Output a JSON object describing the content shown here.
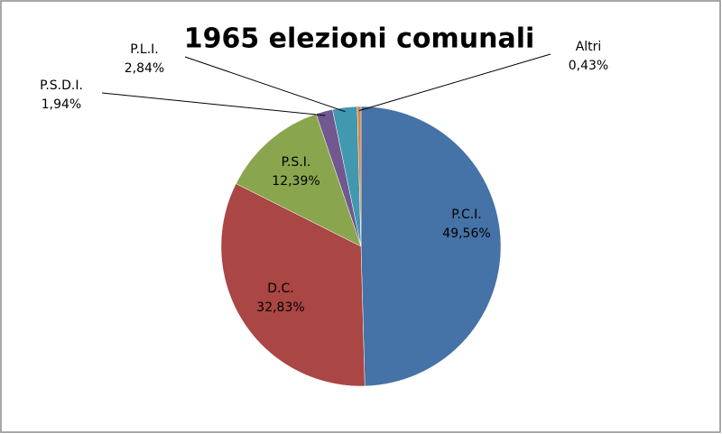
{
  "chart_data": {
    "type": "pie",
    "title": "1965 elezioni comunali",
    "categories": [
      "P.C.I.",
      "D.C.",
      "P.S.I.",
      "P.S.D.I.",
      "P.L.I.",
      "Altri"
    ],
    "values": [
      49.56,
      32.83,
      12.39,
      1.94,
      2.84,
      0.43
    ],
    "value_labels": [
      "49,56%",
      "32,83%",
      "12,39%",
      "1,94%",
      "2,84%",
      "0,43%"
    ],
    "colors": [
      "#4572a7",
      "#aa4643",
      "#89a54e",
      "#71588f",
      "#4198af",
      "#db843d"
    ]
  }
}
